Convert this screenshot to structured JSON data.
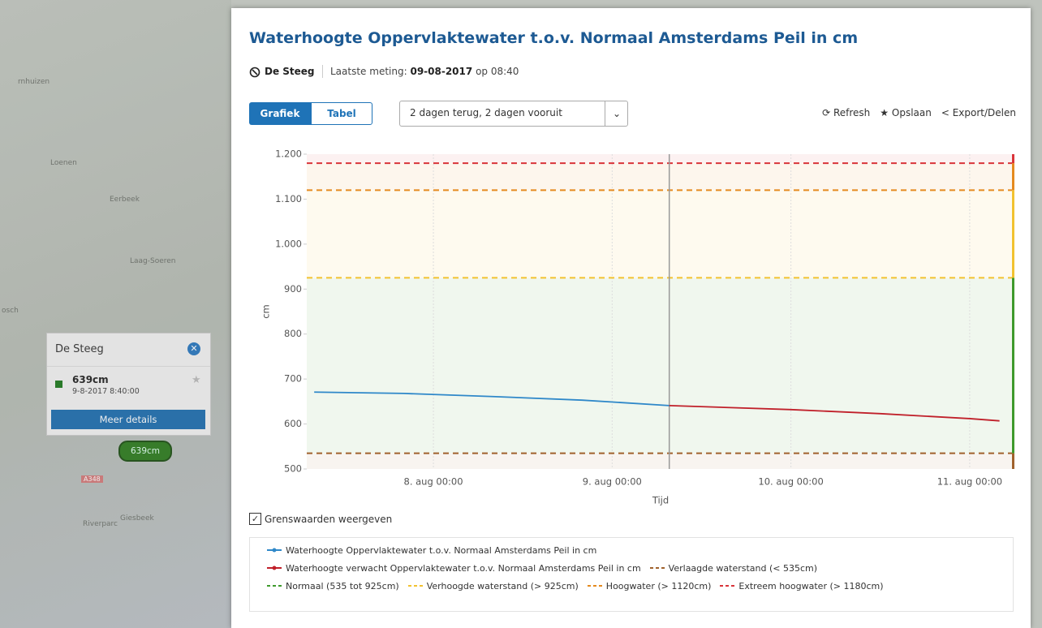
{
  "map": {
    "labels": [
      "rnhuizen",
      "Loenen",
      "Eerbeek",
      "Laag-Soeren",
      "osch",
      "Riverparc",
      "Giesbeek"
    ],
    "road": "A348"
  },
  "popup": {
    "title": "De Steeg",
    "value": "639cm",
    "time": "9-8-2017 8:40:00",
    "button": "Meer details",
    "marker": "639cm"
  },
  "panel": {
    "title": "Waterhoogte Oppervlaktewater t.o.v. Normaal Amsterdams Peil in cm",
    "station": "De Steeg",
    "last_label": "Laatste meting:",
    "last_date": "09-08-2017",
    "last_time": "op 08:40",
    "tabs": [
      "Grafiek",
      "Tabel"
    ],
    "range": "2 dagen terug, 2 dagen vooruit",
    "actions": [
      "Refresh",
      "Opslaan",
      "Export/Delen"
    ],
    "checkbox": "Grenswaarden weergeven"
  },
  "chart_data": {
    "type": "line",
    "y_label": "cm",
    "x_label": "Tijd",
    "xlim": [
      "7. aug 07:00",
      "11. aug 06:00"
    ],
    "xticks": [
      "8. aug 00:00",
      "9. aug 00:00",
      "10. aug 00:00",
      "11. aug 00:00"
    ],
    "ylim": [
      500,
      1200
    ],
    "yticks": [
      {
        "value": 1200,
        "label": "1.200"
      },
      {
        "value": 1100,
        "label": "1.100"
      },
      {
        "value": 1000,
        "label": "1.000"
      },
      900,
      800,
      700,
      600,
      500
    ],
    "grid": "x",
    "now_line": "9. aug 07:40",
    "series": [
      {
        "name": "Waterhoogte Oppervlaktewater t.o.v. Normaal Amsterdams Peil in cm",
        "color": "#2f88c9",
        "x": [
          "7. aug 08:00",
          "7. aug 20:00",
          "8. aug 08:00",
          "8. aug 20:00",
          "9. aug 07:40"
        ],
        "values": [
          671,
          668,
          661,
          653,
          641
        ]
      },
      {
        "name": "Waterhoogte verwacht Oppervlaktewater t.o.v. Normaal Amsterdams Peil in cm",
        "color": "#c0202a",
        "x": [
          "9. aug 07:40",
          "10. aug 00:00",
          "10. aug 12:00",
          "11. aug 00:00",
          "11. aug 04:00"
        ],
        "values": [
          641,
          632,
          623,
          612,
          607
        ]
      }
    ],
    "zones": [
      {
        "name": "Verlaagde waterstand (< 535cm)",
        "color": "#a0622d",
        "line": 535
      },
      {
        "name": "Normaal (535 tot 925cm)",
        "color": "#3e9a2c"
      },
      {
        "name": "Verhoogde waterstand (> 925cm)",
        "color": "#f2c230",
        "line": 925
      },
      {
        "name": "Hoogwater (> 1120cm)",
        "color": "#e58a1f",
        "line": 1120
      },
      {
        "name": "Extreem hoogwater (> 1180cm)",
        "color": "#d9343a",
        "line": 1180
      }
    ]
  }
}
